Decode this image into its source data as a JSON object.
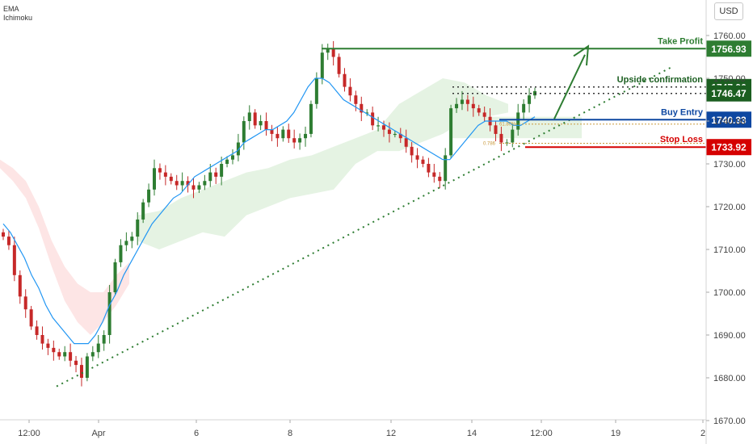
{
  "indicators": [
    "EMA",
    "Ichimoku"
  ],
  "currency_button": "USD",
  "colors": {
    "bull": "#26a69a",
    "bear": "#ef5350",
    "candle_up": "#2e7d32",
    "candle_down": "#c62828",
    "ema": "#2196f3",
    "cloud_green": "#e5f3e3",
    "cloud_red": "#fde5e5",
    "take_profit": "#2e7d32",
    "upside": "#1b5e20",
    "buy_entry": "#0d47a1",
    "stop_loss": "#d50000",
    "trendline": "#2e7d32",
    "fib": "#c99a3d"
  },
  "chart_data": {
    "type": "candlestick",
    "y_axis": {
      "range": [
        1670,
        1765
      ],
      "ticks": [
        "1760.00",
        "1750.00",
        "1740.00",
        "1730.00",
        "1720.00",
        "1710.00",
        "1700.00",
        "1690.00",
        "1680.00",
        "1670.00"
      ],
      "tick_values": [
        1760,
        1750,
        1740,
        1730,
        1720,
        1710,
        1700,
        1690,
        1680,
        1670
      ]
    },
    "x_axis": {
      "labels": [
        "12:00",
        "Apr",
        "6",
        "8",
        "12",
        "14",
        "12:00",
        "19",
        "2"
      ]
    },
    "levels": [
      {
        "name": "Take Profit",
        "value": 1756.93,
        "label": "1756.93"
      },
      {
        "name": "Upside confirmation",
        "value": 1747.96,
        "label": "1747.96"
      },
      {
        "name": "",
        "value": 1746.47,
        "label": "1746.47"
      },
      {
        "name": "Buy Entry",
        "value": 1740.33,
        "label": "1740.33"
      },
      {
        "name": "Stop Loss",
        "value": 1733.92,
        "label": "1733.92"
      }
    ],
    "fib_labels": [
      "61.80%",
      "0.786"
    ],
    "fib_values": [
      1739.3,
      1734.8
    ],
    "trendline": {
      "from": {
        "index": 0,
        "value": 1678
      },
      "to": {
        "index": 1,
        "value": 1752.5
      }
    },
    "close_path": [
      1713,
      1711,
      1704,
      1699,
      1696,
      1692,
      1690,
      1688,
      1687,
      1686,
      1685,
      1686,
      1684,
      1683,
      1680,
      1685,
      1686,
      1688,
      1690,
      1700,
      1707,
      1711,
      1712,
      1713,
      1717,
      1721,
      1724,
      1729,
      1728,
      1727,
      1726,
      1725,
      1726,
      1725,
      1724,
      1725,
      1726,
      1728,
      1727,
      1730,
      1731,
      1732,
      1735,
      1740,
      1742,
      1739,
      1740,
      1738,
      1737,
      1736,
      1738,
      1736,
      1735,
      1736,
      1737,
      1744,
      1750,
      1756,
      1757,
      1755,
      1751,
      1748,
      1746,
      1744,
      1742,
      1742,
      1739,
      1739,
      1738,
      1737,
      1737,
      1736,
      1734,
      1732,
      1731,
      1730,
      1728,
      1727,
      1726,
      1732,
      1743,
      1744,
      1745,
      1744,
      1743,
      1742,
      1741,
      1739,
      1737,
      1735,
      1735,
      1738,
      1742,
      1744,
      1746,
      1747
    ],
    "ema_path": [
      1716,
      1714,
      1711,
      1708,
      1704,
      1701,
      1697,
      1694,
      1692,
      1690,
      1688,
      1688,
      1688,
      1690,
      1693,
      1697,
      1700,
      1704,
      1707,
      1710,
      1713,
      1716,
      1718,
      1720,
      1722,
      1723,
      1725,
      1727,
      1728,
      1729,
      1730,
      1731,
      1732,
      1733,
      1735,
      1736,
      1737,
      1738,
      1738,
      1739,
      1740,
      1742,
      1745,
      1748,
      1750,
      1750,
      1749,
      1747,
      1745,
      1744,
      1743,
      1742,
      1741,
      1740,
      1739,
      1738,
      1737,
      1736,
      1735,
      1734,
      1733,
      1732,
      1731,
      1731,
      1733,
      1735,
      1737,
      1739,
      1740,
      1740,
      1740,
      1740,
      1739,
      1739,
      1740,
      1741
    ],
    "cloud_green": [
      [
        1718,
        1712
      ],
      [
        1719,
        1710
      ],
      [
        1722,
        1712
      ],
      [
        1724,
        1714
      ],
      [
        1726,
        1713
      ],
      [
        1728,
        1718
      ],
      [
        1729,
        1720
      ],
      [
        1731,
        1722
      ],
      [
        1732,
        1723
      ],
      [
        1734,
        1724
      ],
      [
        1736,
        1730
      ],
      [
        1738,
        1733
      ],
      [
        1744,
        1733
      ],
      [
        1747,
        1735
      ],
      [
        1750,
        1737
      ],
      [
        1749,
        1740
      ],
      [
        1746,
        1741
      ],
      [
        1744,
        1742
      ]
    ],
    "cloud_red": [
      [
        1729,
        1731
      ],
      [
        1726,
        1729
      ],
      [
        1722,
        1726
      ],
      [
        1715,
        1720
      ],
      [
        1706,
        1712
      ],
      [
        1698,
        1706
      ],
      [
        1693,
        1702
      ],
      [
        1690,
        1700
      ],
      [
        1693,
        1700
      ],
      [
        1697,
        1704
      ],
      [
        1702,
        1707
      ]
    ]
  }
}
